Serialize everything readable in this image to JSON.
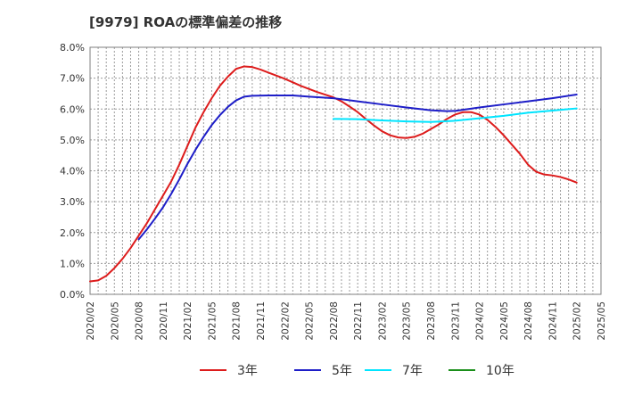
{
  "chart_data": {
    "type": "line",
    "title": "[9979]  ROAの標準偏差の推移",
    "xlabel": "",
    "ylabel": "",
    "x_range": [
      "2020/02",
      "2025/05"
    ],
    "x_ticks": [
      "2020/02",
      "2020/05",
      "2020/08",
      "2020/11",
      "2021/02",
      "2021/05",
      "2021/08",
      "2021/11",
      "2022/02",
      "2022/05",
      "2022/08",
      "2022/11",
      "2023/02",
      "2023/05",
      "2023/08",
      "2023/11",
      "2024/02",
      "2024/05",
      "2024/08",
      "2024/11",
      "2025/02",
      "2025/05"
    ],
    "ylim": [
      0,
      8
    ],
    "y_ticks": [
      0,
      1,
      2,
      3,
      4,
      5,
      6,
      7,
      8
    ],
    "y_tick_labels": [
      "0.0%",
      "1.0%",
      "2.0%",
      "3.0%",
      "4.0%",
      "5.0%",
      "6.0%",
      "7.0%",
      "8.0%"
    ],
    "grid": true,
    "legend_position": "bottom",
    "series": [
      {
        "name": "3年",
        "color": "#dd1c1c",
        "points": [
          [
            "2020/02",
            0.42
          ],
          [
            "2020/03",
            0.45
          ],
          [
            "2020/04",
            0.6
          ],
          [
            "2020/05",
            0.85
          ],
          [
            "2020/06",
            1.15
          ],
          [
            "2020/07",
            1.5
          ],
          [
            "2020/08",
            1.9
          ],
          [
            "2020/09",
            2.3
          ],
          [
            "2020/10",
            2.75
          ],
          [
            "2020/11",
            3.2
          ],
          [
            "2020/12",
            3.65
          ],
          [
            "2021/01",
            4.2
          ],
          [
            "2021/02",
            4.8
          ],
          [
            "2021/03",
            5.4
          ],
          [
            "2021/04",
            5.9
          ],
          [
            "2021/05",
            6.35
          ],
          [
            "2021/06",
            6.75
          ],
          [
            "2021/07",
            7.05
          ],
          [
            "2021/08",
            7.3
          ],
          [
            "2021/09",
            7.38
          ],
          [
            "2021/10",
            7.36
          ],
          [
            "2021/11",
            7.28
          ],
          [
            "2021/12",
            7.18
          ],
          [
            "2022/02",
            6.98
          ],
          [
            "2022/04",
            6.75
          ],
          [
            "2022/06",
            6.55
          ],
          [
            "2022/08",
            6.38
          ],
          [
            "2022/09",
            6.25
          ],
          [
            "2022/10",
            6.08
          ],
          [
            "2022/11",
            5.9
          ],
          [
            "2022/12",
            5.68
          ],
          [
            "2023/01",
            5.47
          ],
          [
            "2023/02",
            5.28
          ],
          [
            "2023/03",
            5.15
          ],
          [
            "2023/04",
            5.08
          ],
          [
            "2023/05",
            5.06
          ],
          [
            "2023/06",
            5.1
          ],
          [
            "2023/07",
            5.2
          ],
          [
            "2023/08",
            5.35
          ],
          [
            "2023/09",
            5.5
          ],
          [
            "2023/10",
            5.68
          ],
          [
            "2023/11",
            5.82
          ],
          [
            "2023/12",
            5.9
          ],
          [
            "2024/01",
            5.9
          ],
          [
            "2024/02",
            5.82
          ],
          [
            "2024/03",
            5.65
          ],
          [
            "2024/04",
            5.42
          ],
          [
            "2024/05",
            5.15
          ],
          [
            "2024/06",
            4.85
          ],
          [
            "2024/07",
            4.55
          ],
          [
            "2024/08",
            4.2
          ],
          [
            "2024/09",
            3.97
          ],
          [
            "2024/10",
            3.88
          ],
          [
            "2024/11",
            3.85
          ],
          [
            "2024/12",
            3.8
          ],
          [
            "2025/01",
            3.72
          ],
          [
            "2025/02",
            3.62
          ]
        ]
      },
      {
        "name": "5年",
        "color": "#1e1ec8",
        "points": [
          [
            "2020/08",
            1.78
          ],
          [
            "2020/09",
            2.1
          ],
          [
            "2020/10",
            2.45
          ],
          [
            "2020/11",
            2.82
          ],
          [
            "2020/12",
            3.25
          ],
          [
            "2021/01",
            3.72
          ],
          [
            "2021/02",
            4.22
          ],
          [
            "2021/03",
            4.68
          ],
          [
            "2021/04",
            5.1
          ],
          [
            "2021/05",
            5.48
          ],
          [
            "2021/06",
            5.8
          ],
          [
            "2021/07",
            6.07
          ],
          [
            "2021/08",
            6.28
          ],
          [
            "2021/09",
            6.4
          ],
          [
            "2021/10",
            6.43
          ],
          [
            "2021/12",
            6.44
          ],
          [
            "2022/03",
            6.44
          ],
          [
            "2022/05",
            6.4
          ],
          [
            "2022/08",
            6.35
          ],
          [
            "2022/11",
            6.25
          ],
          [
            "2023/02",
            6.15
          ],
          [
            "2023/05",
            6.05
          ],
          [
            "2023/08",
            5.96
          ],
          [
            "2023/10",
            5.93
          ],
          [
            "2023/11",
            5.94
          ],
          [
            "2024/02",
            6.05
          ],
          [
            "2024/05",
            6.15
          ],
          [
            "2024/08",
            6.25
          ],
          [
            "2024/11",
            6.35
          ],
          [
            "2025/02",
            6.47
          ]
        ]
      },
      {
        "name": "7年",
        "color": "#00e5ff",
        "points": [
          [
            "2022/08",
            5.68
          ],
          [
            "2022/11",
            5.67
          ],
          [
            "2023/02",
            5.63
          ],
          [
            "2023/05",
            5.6
          ],
          [
            "2023/08",
            5.58
          ],
          [
            "2023/11",
            5.62
          ],
          [
            "2024/02",
            5.7
          ],
          [
            "2024/05",
            5.78
          ],
          [
            "2024/08",
            5.88
          ],
          [
            "2024/11",
            5.95
          ],
          [
            "2025/02",
            6.02
          ]
        ]
      },
      {
        "name": "10年",
        "color": "#1a8f1a",
        "points": []
      }
    ]
  }
}
